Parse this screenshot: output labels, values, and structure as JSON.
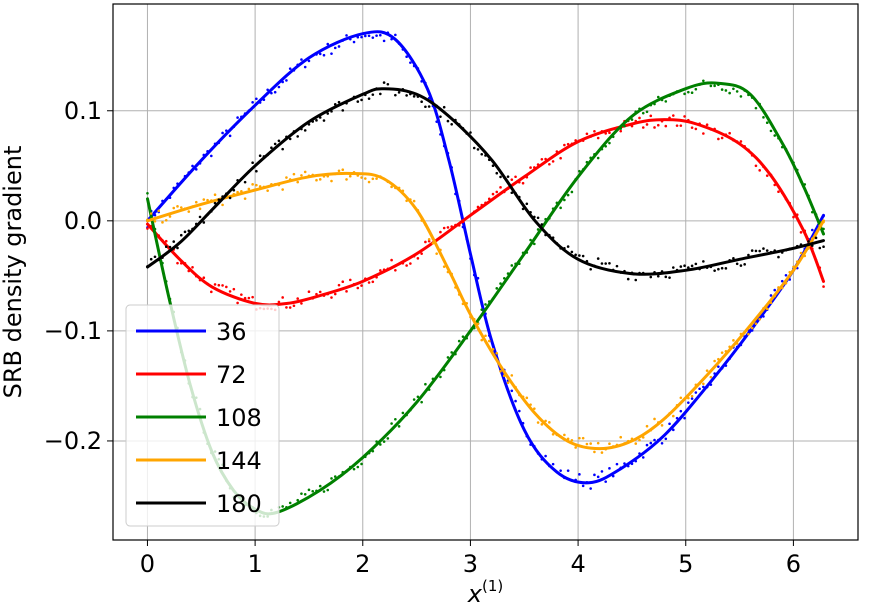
{
  "chart_data": {
    "type": "line",
    "xlabel": "x",
    "xlabel_superscript": "(1)",
    "ylabel": "SRB density gradient",
    "xlim": [
      -0.32,
      6.6
    ],
    "ylim": [
      -0.29,
      0.197
    ],
    "xticks": [
      0,
      1,
      2,
      3,
      4,
      5,
      6
    ],
    "xtick_labels": [
      "0",
      "1",
      "2",
      "3",
      "4",
      "5",
      "6"
    ],
    "yticks": [
      -0.2,
      -0.1,
      0.0,
      0.1
    ],
    "ytick_labels": [
      "−0.2",
      "−0.1",
      "0.0",
      "0.1"
    ],
    "grid": true,
    "legend_position": "lower-left",
    "markers": "scattered sample points around each curve",
    "series": [
      {
        "name": "36",
        "color": "#0000ff",
        "x": [
          0,
          0.5,
          1.0,
          1.5,
          2.0,
          2.3,
          2.6,
          2.8,
          3.0,
          3.2,
          3.5,
          3.8,
          4.1,
          4.4,
          4.8,
          5.2,
          5.6,
          6.0,
          6.28
        ],
        "y": [
          0.0,
          0.055,
          0.105,
          0.148,
          0.17,
          0.165,
          0.12,
          0.055,
          -0.03,
          -0.11,
          -0.19,
          -0.228,
          -0.238,
          -0.225,
          -0.195,
          -0.15,
          -0.1,
          -0.045,
          0.005
        ]
      },
      {
        "name": "72",
        "color": "#ff0000",
        "x": [
          0,
          0.3,
          0.6,
          1.0,
          1.3,
          1.6,
          2.0,
          2.5,
          3.0,
          3.5,
          4.0,
          4.5,
          4.8,
          5.1,
          5.5,
          5.8,
          6.1,
          6.28
        ],
        "y": [
          -0.003,
          -0.035,
          -0.06,
          -0.075,
          -0.075,
          -0.068,
          -0.055,
          -0.03,
          0.005,
          0.04,
          0.072,
          0.088,
          0.092,
          0.088,
          0.07,
          0.04,
          -0.01,
          -0.055
        ]
      },
      {
        "name": "108",
        "color": "#008000",
        "x": [
          0,
          0.2,
          0.4,
          0.6,
          0.8,
          1.0,
          1.2,
          1.6,
          2.0,
          2.5,
          3.0,
          3.5,
          4.0,
          4.5,
          5.0,
          5.3,
          5.6,
          5.9,
          6.1,
          6.28
        ],
        "y": [
          0.02,
          -0.07,
          -0.15,
          -0.21,
          -0.245,
          -0.262,
          -0.265,
          -0.245,
          -0.215,
          -0.165,
          -0.1,
          -0.03,
          0.04,
          0.095,
          0.12,
          0.125,
          0.115,
          0.07,
          0.03,
          -0.012
        ]
      },
      {
        "name": "144",
        "color": "#ffa500",
        "x": [
          0,
          0.5,
          1.0,
          1.5,
          1.9,
          2.2,
          2.5,
          2.8,
          3.0,
          3.3,
          3.6,
          3.9,
          4.2,
          4.5,
          4.8,
          5.2,
          5.6,
          6.0,
          6.28
        ],
        "y": [
          0.0,
          0.015,
          0.028,
          0.04,
          0.043,
          0.038,
          0.01,
          -0.045,
          -0.085,
          -0.135,
          -0.175,
          -0.2,
          -0.207,
          -0.2,
          -0.18,
          -0.14,
          -0.095,
          -0.045,
          0.0
        ]
      },
      {
        "name": "180",
        "color": "#000000",
        "x": [
          0,
          0.3,
          0.6,
          1.0,
          1.5,
          2.0,
          2.2,
          2.5,
          2.8,
          3.2,
          3.6,
          4.0,
          4.5,
          5.0,
          5.5,
          6.0,
          6.28
        ],
        "y": [
          -0.042,
          -0.02,
          0.01,
          0.05,
          0.09,
          0.115,
          0.12,
          0.115,
          0.095,
          0.055,
          0.0,
          -0.035,
          -0.048,
          -0.045,
          -0.035,
          -0.025,
          -0.018
        ]
      }
    ]
  }
}
